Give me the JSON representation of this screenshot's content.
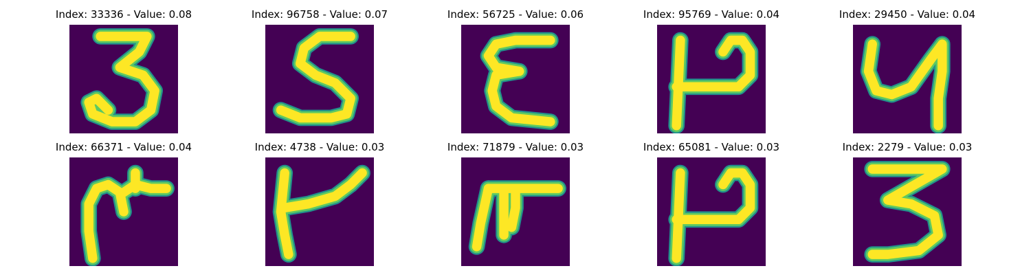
{
  "colors": {
    "background": "#440154",
    "edge": "#21918c",
    "mid": "#5ec962",
    "stroke": "#fde725"
  },
  "panels": [
    {
      "title": "Index: 33336 - Value: 0.08",
      "glyph": "three"
    },
    {
      "title": "Index: 96758 - Value: 0.07",
      "glyph": "s-shape"
    },
    {
      "title": "Index: 56725 - Value: 0.06",
      "glyph": "epsilon"
    },
    {
      "title": "Index: 95769 - Value: 0.04",
      "glyph": "p-rotated"
    },
    {
      "title": "Index: 29450 - Value: 0.04",
      "glyph": "y-shape"
    },
    {
      "title": "Index: 66371 - Value: 0.04",
      "glyph": "m-shape"
    },
    {
      "title": "Index: 4738 - Value: 0.03",
      "glyph": "r-shape"
    },
    {
      "title": "Index: 71879 - Value: 0.03",
      "glyph": "pi-shape"
    },
    {
      "title": "Index: 65081 - Value: 0.03",
      "glyph": "p-rotated"
    },
    {
      "title": "Index: 2279 - Value: 0.03",
      "glyph": "three-flat"
    }
  ]
}
